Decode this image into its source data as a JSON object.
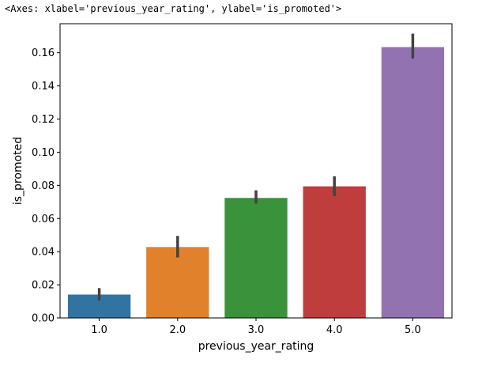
{
  "output_repr": "<Axes: xlabel='previous_year_rating', ylabel='is_promoted'>",
  "chart_data": {
    "type": "bar",
    "xlabel": "previous_year_rating",
    "ylabel": "is_promoted",
    "categories": [
      "1.0",
      "2.0",
      "3.0",
      "4.0",
      "5.0"
    ],
    "values": [
      0.0141,
      0.0428,
      0.0724,
      0.0794,
      0.1634
    ],
    "error_low": [
      0.0105,
      0.0365,
      0.069,
      0.0735,
      0.1565
    ],
    "error_high": [
      0.018,
      0.0495,
      0.077,
      0.0855,
      0.1715
    ],
    "colors": [
      "#3274a1",
      "#e1812c",
      "#3a923a",
      "#c03d3e",
      "#9372b2"
    ],
    "error_color": "#424242",
    "ylim": [
      0,
      0.1775
    ],
    "yticks": [
      0.0,
      0.02,
      0.04,
      0.06,
      0.08,
      0.1,
      0.12,
      0.14,
      0.16
    ],
    "ytick_labels": [
      "0.00",
      "0.02",
      "0.04",
      "0.06",
      "0.08",
      "0.10",
      "0.12",
      "0.14",
      "0.16"
    ],
    "grid": false,
    "legend": "none"
  }
}
